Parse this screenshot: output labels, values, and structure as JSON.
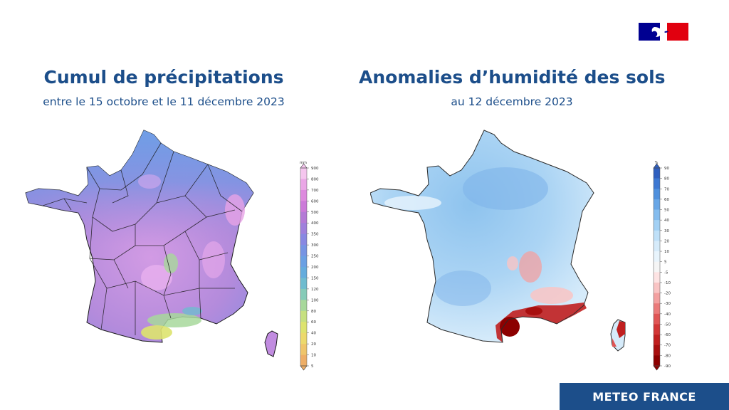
{
  "left_panel": {
    "title": "Cumul de précipitations",
    "subtitle": "entre le 15 octobre et le 11 décembre 2023",
    "legend": {
      "unit": "mm",
      "ticks": [
        "900",
        "800",
        "700",
        "600",
        "500",
        "400",
        "350",
        "300",
        "250",
        "200",
        "150",
        "120",
        "100",
        "80",
        "60",
        "40",
        "20",
        "10",
        "5"
      ],
      "colors": [
        "#f5c6ee",
        "#eaa7e6",
        "#dd8ade",
        "#cc7ad9",
        "#b47ad6",
        "#9f80dc",
        "#8888e2",
        "#7694e3",
        "#6aa0e3",
        "#64acdd",
        "#6fbccf",
        "#86cbb8",
        "#a7d89b",
        "#c6e07f",
        "#dde36e",
        "#ecd96c",
        "#efc56a",
        "#eeae66"
      ]
    }
  },
  "right_panel": {
    "title": "Anomalies d’humidité des sols",
    "subtitle": "au 12 décembre 2023",
    "legend": {
      "unit": "%",
      "ticks": [
        "90",
        "80",
        "70",
        "60",
        "50",
        "40",
        "30",
        "20",
        "10",
        "5",
        "-5",
        "-10",
        "-20",
        "-30",
        "-40",
        "-50",
        "-60",
        "-70",
        "-80",
        "-90"
      ],
      "colors": [
        "#2f5fbf",
        "#3d78d2",
        "#4f90dd",
        "#68a6e6",
        "#84bcee",
        "#a2d0f4",
        "#bfe0f8",
        "#d6ebfa",
        "#e8f4fc",
        "#f5f5f5",
        "#fde3e3",
        "#f9c4c4",
        "#f3a0a0",
        "#eb7a7a",
        "#e05555",
        "#d23636",
        "#c01f1f",
        "#a80f0f",
        "#8c0000"
      ]
    }
  },
  "footer": {
    "label": "METEO FRANCE"
  },
  "colors": {
    "brand_blue": "#1c4e8a",
    "flag_blue": "#000091",
    "flag_red": "#e1000f"
  }
}
